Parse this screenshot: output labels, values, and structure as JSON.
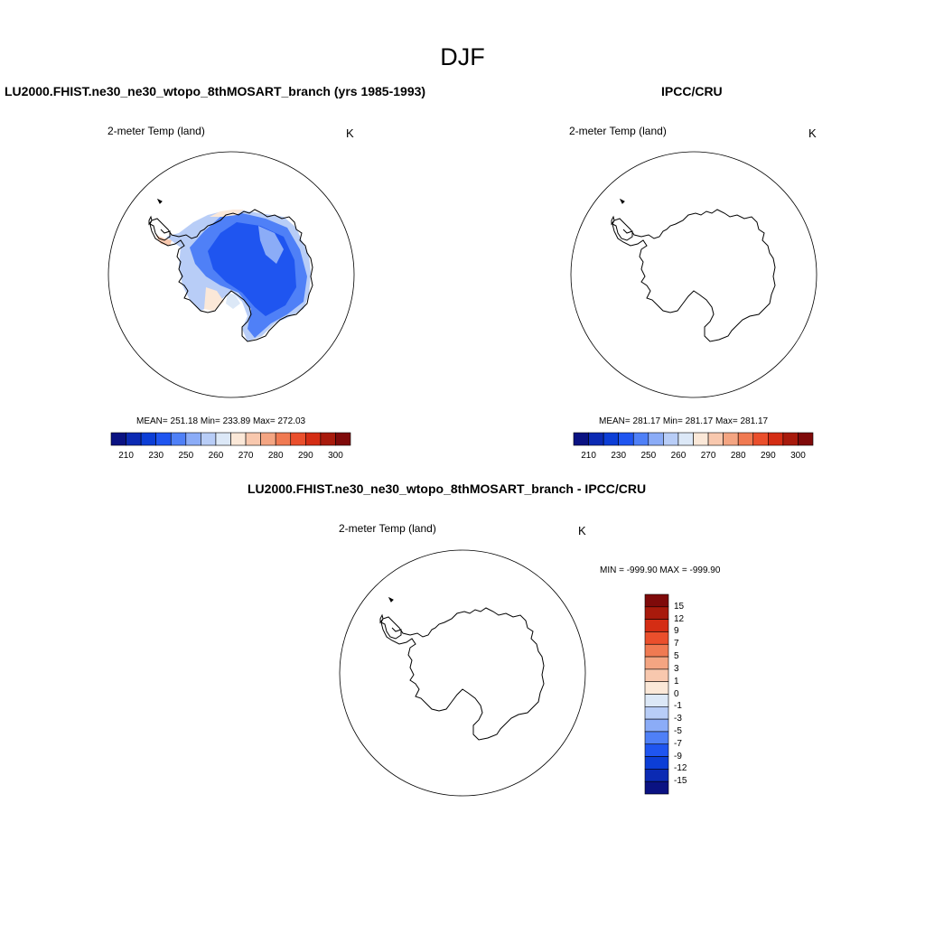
{
  "page_title": "DJF",
  "panels": [
    {
      "title": "LU2000.FHIST.ne30_ne30_wtopo_8thMOSART_branch (yrs 1985-1993)",
      "variable": "2-meter Temp (land)",
      "units": "K",
      "stats": "MEAN= 251.18  Min= 233.89  Max= 272.03",
      "filled": true
    },
    {
      "title": "IPCC/CRU",
      "variable": "2-meter Temp (land)",
      "units": "K",
      "stats": "MEAN= 281.17  Min= 281.17  Max= 281.17",
      "filled": false
    },
    {
      "title": "LU2000.FHIST.ne30_ne30_wtopo_8thMOSART_branch - IPCC/CRU",
      "variable": "2-meter Temp (land)",
      "units": "K",
      "stats": "MIN = -999.90 MAX = -999.90",
      "filled": false
    }
  ],
  "colorbar_abs": {
    "colors": [
      "#0a1282",
      "#0b2ab3",
      "#0c3ed6",
      "#1f55f0",
      "#4f80f7",
      "#8bacf7",
      "#b8cdf7",
      "#dce8f7",
      "#fbe8d8",
      "#f8c8ae",
      "#f4a582",
      "#f07a52",
      "#ea4f2c",
      "#d42d14",
      "#a81a0c",
      "#7f0a0a"
    ],
    "labels": [
      "210",
      "230",
      "250",
      "260",
      "270",
      "280",
      "290",
      "300"
    ]
  },
  "colorbar_diff": {
    "colors": [
      "#0a1282",
      "#0b2ab3",
      "#0c3ed6",
      "#1f55f0",
      "#4f80f7",
      "#8bacf7",
      "#b8cdf7",
      "#dce8f7",
      "#fbe8d8",
      "#f8c8ae",
      "#f4a582",
      "#f07a52",
      "#ea4f2c",
      "#d42d14",
      "#a81a0c",
      "#7f0a0a"
    ],
    "labels": [
      "15",
      "12",
      "9",
      "7",
      "5",
      "3",
      "1",
      "0",
      "-1",
      "-3",
      "-5",
      "-7",
      "-9",
      "-12",
      "-15"
    ]
  }
}
